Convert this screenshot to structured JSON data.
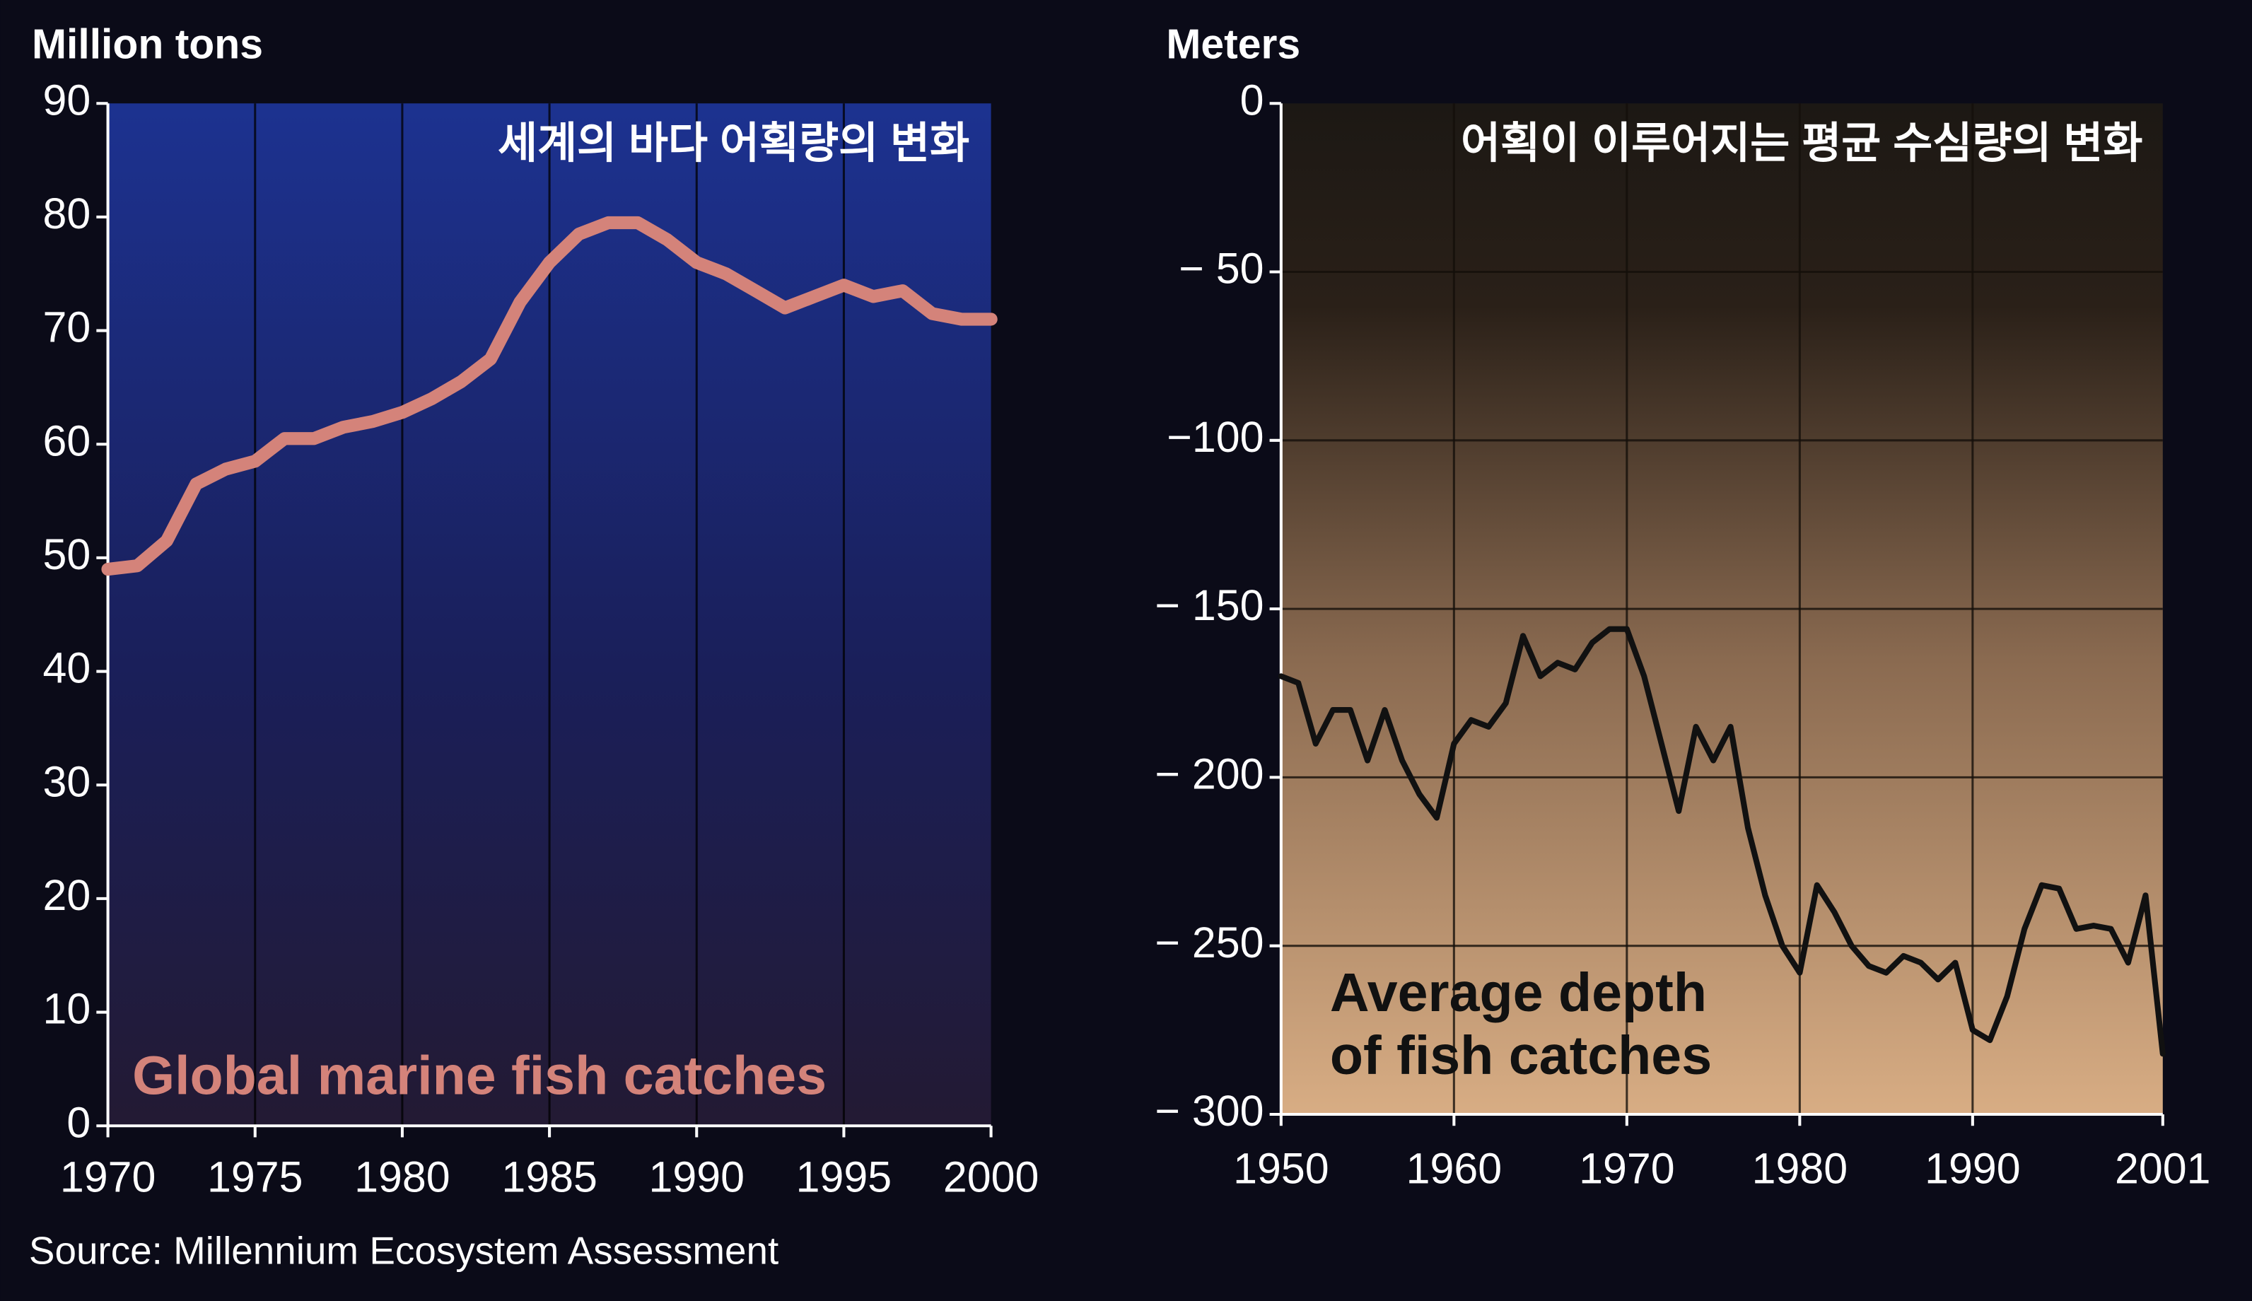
{
  "chart_data": [
    {
      "type": "line",
      "ylabel": "Million tons",
      "title": "세계의 바다 어획량의 변화",
      "annotation": "Global marine fish catches",
      "color": "#d4837a",
      "x": [
        1970,
        1971,
        1972,
        1973,
        1974,
        1975,
        1976,
        1977,
        1978,
        1979,
        1980,
        1981,
        1982,
        1983,
        1984,
        1985,
        1986,
        1987,
        1988,
        1989,
        1990,
        1991,
        1992,
        1993,
        1994,
        1995,
        1996,
        1997,
        1998,
        1999,
        2000
      ],
      "values": [
        49,
        49.3,
        51.5,
        56.5,
        57.8,
        58.5,
        60.5,
        60.5,
        61.5,
        62,
        62.8,
        64,
        65.5,
        67.5,
        72.5,
        76,
        78.5,
        79.5,
        79.5,
        78,
        76,
        75,
        73.5,
        72,
        73,
        74,
        73,
        73.5,
        71.5,
        71,
        71
      ],
      "xlim": [
        1970,
        2000
      ],
      "xticks": [
        1970,
        1975,
        1980,
        1985,
        1990,
        1995,
        2000
      ],
      "ylim": [
        0,
        90
      ],
      "yticks": [
        0,
        10,
        20,
        30,
        40,
        50,
        60,
        70,
        80,
        90
      ],
      "grid": true
    },
    {
      "type": "line",
      "ylabel": "Meters",
      "title": "어획이 이루어지는 평균 수심량의 변화",
      "annotation": [
        "Average depth",
        "of fish catches"
      ],
      "color": "#111111",
      "x": [
        1950,
        1951,
        1952,
        1953,
        1954,
        1955,
        1956,
        1957,
        1958,
        1959,
        1960,
        1961,
        1962,
        1963,
        1964,
        1965,
        1966,
        1967,
        1968,
        1969,
        1970,
        1971,
        1972,
        1973,
        1974,
        1975,
        1976,
        1977,
        1978,
        1979,
        1980,
        1981,
        1982,
        1983,
        1984,
        1985,
        1986,
        1987,
        1988,
        1989,
        1990,
        1991,
        1992,
        1993,
        1994,
        1995,
        1996,
        1997,
        1998,
        1999,
        2000,
        2001
      ],
      "values": [
        -170,
        -172,
        -190,
        -180,
        -180,
        -195,
        -180,
        -195,
        -205,
        -212,
        -190,
        -183,
        -185,
        -178,
        -158,
        -170,
        -166,
        -168,
        -160,
        -156,
        -156,
        -170,
        -190,
        -210,
        -185,
        -195,
        -185,
        -215,
        -235,
        -250,
        -258,
        -232,
        -240,
        -250,
        -256,
        -258,
        -253,
        -255,
        -260,
        -255,
        -275,
        -278,
        -265,
        -245,
        -232,
        -233,
        -245,
        -244,
        -245,
        -255,
        -235,
        -282
      ],
      "xlim": [
        1950,
        2001
      ],
      "xticks": [
        1950,
        1960,
        1970,
        1980,
        1990,
        2001
      ],
      "ylim": [
        -300,
        0
      ],
      "yticks": [
        0,
        {
          "value": -50,
          "label": "− 50"
        },
        {
          "value": -100,
          "label": "−100"
        },
        {
          "value": -150,
          "label": "− 150"
        },
        {
          "value": -200,
          "label": "− 200"
        },
        {
          "value": -250,
          "label": "− 250"
        },
        {
          "value": -300,
          "label": "− 300"
        }
      ],
      "grid": true
    }
  ],
  "source": "Source: Millennium Ecosystem Assessment"
}
